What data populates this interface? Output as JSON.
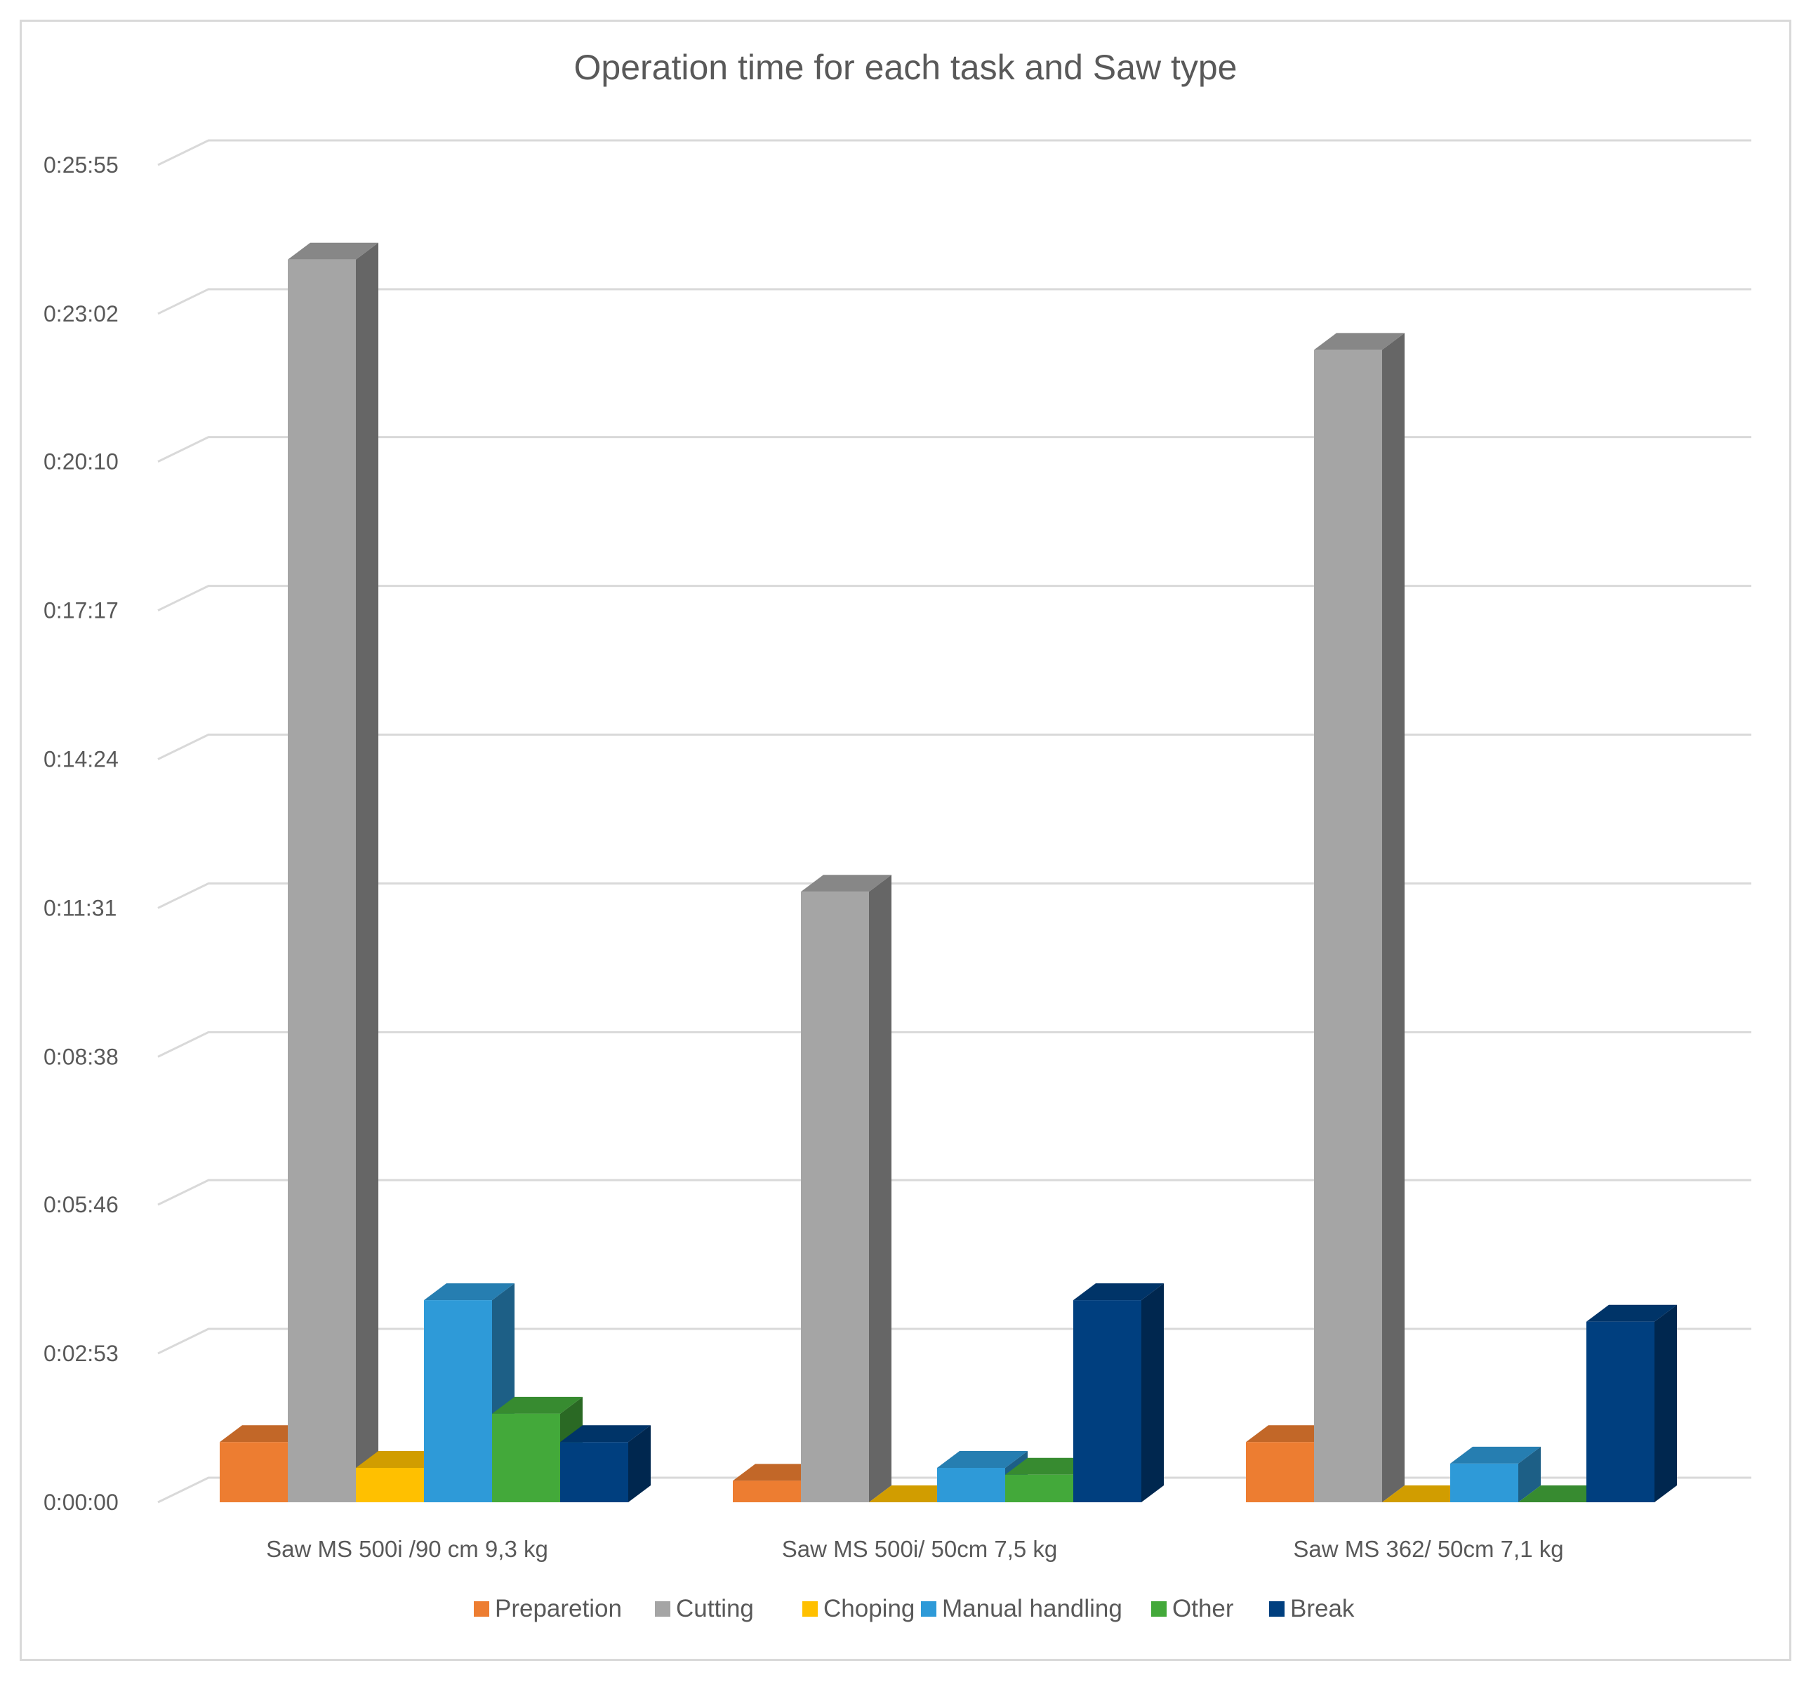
{
  "chart_data": {
    "type": "bar",
    "style": "3d-clustered-column",
    "title": "Operation time for each task and Saw type",
    "xlabel": "",
    "ylabel": "",
    "y_unit": "h:mm:ss",
    "ylim": [
      0,
      1555
    ],
    "yticks": [
      {
        "label": "0:00:00",
        "value": 0
      },
      {
        "label": "0:02:53",
        "value": 173
      },
      {
        "label": "0:05:46",
        "value": 346
      },
      {
        "label": "0:08:38",
        "value": 518
      },
      {
        "label": "0:11:31",
        "value": 691
      },
      {
        "label": "0:14:24",
        "value": 864
      },
      {
        "label": "0:17:17",
        "value": 1037
      },
      {
        "label": "0:20:10",
        "value": 1210
      },
      {
        "label": "0:23:02",
        "value": 1382
      },
      {
        "label": "0:25:55",
        "value": 1555
      }
    ],
    "grid": true,
    "legend_position": "bottom",
    "categories": [
      "Saw MS 500i /90 cm 9,3 kg",
      "Saw MS 500i/ 50cm 7,5 kg",
      "Saw MS 362/ 50cm 7,1 kg"
    ],
    "series": [
      {
        "name": "Preparetion",
        "color": "#ED7D31",
        "values": [
          70,
          25,
          70
        ]
      },
      {
        "name": "Cutting",
        "color": "#A5A5A5",
        "values": [
          1445,
          710,
          1340
        ]
      },
      {
        "name": "Choping",
        "color": "#FFC000",
        "values": [
          40,
          0,
          0
        ]
      },
      {
        "name": "Manual handling",
        "color": "#2E9AD8",
        "values": [
          235,
          40,
          45
        ]
      },
      {
        "name": "Other",
        "color": "#43A93A",
        "values": [
          103,
          32,
          0
        ]
      },
      {
        "name": "Break",
        "color": "#003F7F",
        "values": [
          70,
          235,
          210
        ]
      }
    ]
  }
}
